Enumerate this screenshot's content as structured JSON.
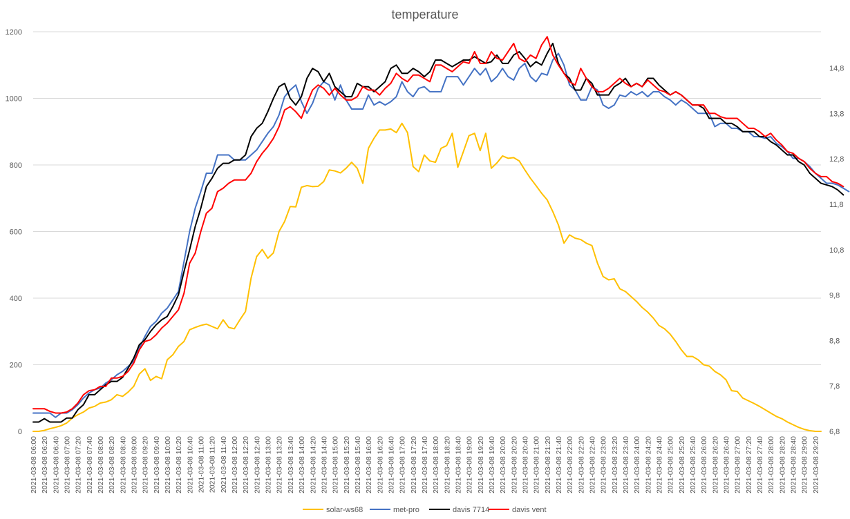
{
  "chart_data": {
    "type": "line",
    "title": "temperature",
    "x_start": "2021-03-08 06:00",
    "x_step_minutes": 10,
    "x_label_step_points": 2,
    "ylim": [
      0,
      1200
    ],
    "yticks": [
      0,
      200,
      400,
      600,
      800,
      1000,
      1200
    ],
    "y2lim": [
      6.8,
      15.6
    ],
    "y2ticks": [
      "6,8",
      "7,8",
      "8,8",
      "9,8",
      "10,8",
      "11,8",
      "12,8",
      "13,8",
      "14,8"
    ],
    "grid": "horizontal",
    "legend": "bottom",
    "series": [
      {
        "name": "solar-ws68",
        "color": "#FFC000",
        "values": [
          0,
          0,
          3,
          8,
          12,
          17,
          25,
          40,
          50,
          58,
          70,
          75,
          85,
          88,
          95,
          110,
          105,
          118,
          135,
          172,
          188,
          153,
          165,
          158,
          215,
          230,
          255,
          270,
          305,
          312,
          318,
          322,
          315,
          308,
          335,
          312,
          308,
          335,
          360,
          460,
          525,
          546,
          520,
          536,
          600,
          630,
          675,
          674,
          733,
          738,
          735,
          736,
          750,
          785,
          782,
          776,
          790,
          808,
          790,
          745,
          850,
          880,
          905,
          905,
          908,
          897,
          925,
          897,
          795,
          780,
          830,
          812,
          808,
          850,
          858,
          895,
          793,
          840,
          888,
          895,
          843,
          895,
          790,
          806,
          827,
          820,
          822,
          812,
          785,
          760,
          738,
          715,
          695,
          660,
          620,
          565,
          590,
          580,
          576,
          565,
          558,
          505,
          465,
          455,
          458,
          428,
          420,
          405,
          390,
          372,
          358,
          340,
          318,
          308,
          292,
          270,
          245,
          225,
          225,
          215,
          200,
          196,
          180,
          170,
          155,
          122,
          120,
          100,
          92,
          84,
          75,
          65,
          55,
          45,
          38,
          28,
          20,
          12,
          6,
          2,
          0,
          0
        ]
      },
      {
        "name": "met-pro",
        "color": "#4472C4",
        "values": [
          55,
          55,
          55,
          55,
          42,
          55,
          55,
          65,
          80,
          100,
          115,
          125,
          130,
          145,
          155,
          170,
          180,
          195,
          210,
          250,
          285,
          315,
          330,
          355,
          370,
          395,
          420,
          510,
          600,
          670,
          720,
          775,
          775,
          830,
          830,
          830,
          815,
          815,
          815,
          830,
          845,
          870,
          895,
          915,
          950,
          1005,
          1025,
          1040,
          990,
          955,
          985,
          1030,
          1050,
          1040,
          995,
          1040,
          995,
          968,
          968,
          968,
          1010,
          980,
          990,
          980,
          990,
          1005,
          1050,
          1020,
          1005,
          1030,
          1035,
          1020,
          1020,
          1020,
          1065,
          1065,
          1065,
          1040,
          1065,
          1090,
          1070,
          1090,
          1050,
          1065,
          1090,
          1065,
          1055,
          1090,
          1105,
          1065,
          1050,
          1075,
          1070,
          1115,
          1135,
          1100,
          1040,
          1025,
          995,
          995,
          1035,
          1025,
          980,
          970,
          980,
          1010,
          1005,
          1020,
          1010,
          1020,
          1005,
          1020,
          1020,
          1005,
          995,
          980,
          995,
          985,
          970,
          955,
          955,
          955,
          915,
          925,
          925,
          910,
          910,
          900,
          900,
          885,
          885,
          880,
          885,
          865,
          855,
          840,
          820,
          820,
          810,
          795,
          775,
          760,
          745,
          745,
          740,
          730,
          720
        ]
      },
      {
        "name": "davis 7714",
        "color": "#000000",
        "values": [
          28,
          28,
          38,
          28,
          28,
          28,
          40,
          40,
          65,
          80,
          110,
          110,
          125,
          140,
          150,
          150,
          162,
          190,
          220,
          260,
          275,
          300,
          320,
          335,
          345,
          375,
          410,
          480,
          545,
          615,
          670,
          735,
          760,
          790,
          805,
          805,
          815,
          815,
          830,
          885,
          910,
          925,
          960,
          1000,
          1035,
          1045,
          1000,
          980,
          1005,
          1060,
          1090,
          1080,
          1050,
          1075,
          1035,
          1020,
          1005,
          1005,
          1045,
          1035,
          1035,
          1020,
          1035,
          1050,
          1090,
          1100,
          1075,
          1075,
          1090,
          1080,
          1065,
          1080,
          1115,
          1115,
          1105,
          1095,
          1105,
          1115,
          1115,
          1125,
          1115,
          1105,
          1110,
          1130,
          1105,
          1105,
          1130,
          1140,
          1120,
          1095,
          1110,
          1100,
          1135,
          1165,
          1105,
          1075,
          1060,
          1025,
          1025,
          1060,
          1045,
          1010,
          1010,
          1010,
          1035,
          1045,
          1060,
          1035,
          1045,
          1035,
          1060,
          1060,
          1040,
          1025,
          1010,
          1020,
          1010,
          995,
          980,
          980,
          970,
          940,
          940,
          940,
          925,
          925,
          915,
          900,
          900,
          900,
          885,
          885,
          870,
          860,
          845,
          830,
          830,
          810,
          800,
          775,
          760,
          745,
          740,
          735,
          725,
          710
        ]
      },
      {
        "name": "davis vent",
        "color": "#FF0000",
        "values": [
          68,
          68,
          68,
          60,
          55,
          55,
          58,
          68,
          85,
          110,
          122,
          125,
          135,
          135,
          160,
          160,
          165,
          180,
          205,
          245,
          270,
          275,
          290,
          310,
          325,
          345,
          365,
          415,
          505,
          535,
          600,
          655,
          670,
          720,
          730,
          745,
          755,
          755,
          755,
          775,
          810,
          835,
          855,
          880,
          915,
          965,
          975,
          960,
          940,
          985,
          1025,
          1040,
          1030,
          1010,
          1030,
          1010,
          995,
          995,
          1005,
          1035,
          1025,
          1025,
          1010,
          1030,
          1045,
          1075,
          1060,
          1050,
          1070,
          1070,
          1060,
          1050,
          1100,
          1100,
          1090,
          1080,
          1095,
          1110,
          1105,
          1140,
          1105,
          1105,
          1140,
          1120,
          1115,
          1140,
          1165,
          1120,
          1110,
          1130,
          1120,
          1160,
          1185,
          1130,
          1100,
          1075,
          1050,
          1040,
          1090,
          1060,
          1035,
          1020,
          1020,
          1030,
          1045,
          1060,
          1045,
          1035,
          1045,
          1035,
          1055,
          1040,
          1025,
          1020,
          1010,
          1020,
          1010,
          995,
          980,
          980,
          980,
          955,
          955,
          945,
          940,
          940,
          940,
          925,
          910,
          910,
          900,
          885,
          895,
          875,
          860,
          840,
          835,
          820,
          810,
          790,
          775,
          765,
          765,
          750,
          745,
          735
        ]
      }
    ]
  }
}
